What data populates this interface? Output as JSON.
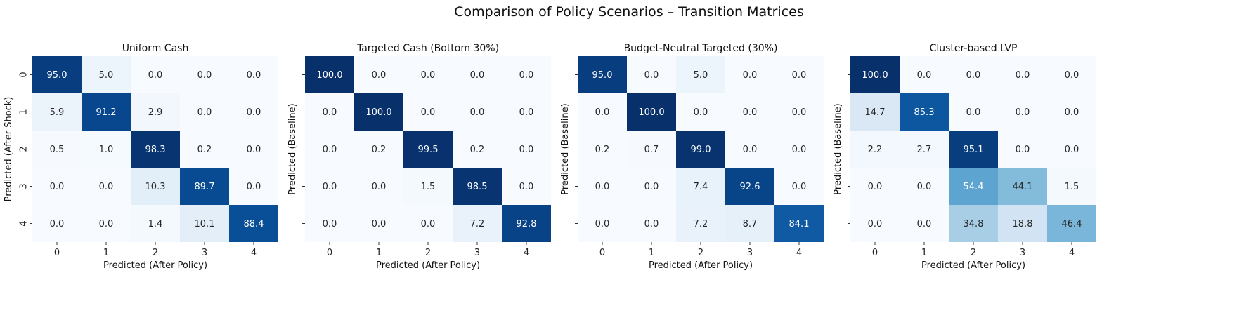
{
  "figure": {
    "title": "Comparison of Policy Scenarios – Transition Matrices"
  },
  "chart_data": [
    {
      "type": "heatmap",
      "title": "Uniform Cash",
      "xlabel": "Predicted (After Policy)",
      "ylabel": "Predicted (After Shock)",
      "x_ticks": [
        "0",
        "1",
        "2",
        "3",
        "4"
      ],
      "y_ticks": [
        "0",
        "1",
        "2",
        "3",
        "4"
      ],
      "y_tick_labels_shown": true,
      "colormap": "Blues",
      "vmin": 0,
      "vmax": 100,
      "values": [
        [
          95.0,
          5.0,
          0.0,
          0.0,
          0.0
        ],
        [
          5.9,
          91.2,
          2.9,
          0.0,
          0.0
        ],
        [
          0.5,
          1.0,
          98.3,
          0.2,
          0.0
        ],
        [
          0.0,
          0.0,
          10.3,
          89.7,
          0.0
        ],
        [
          0.0,
          0.0,
          1.4,
          10.1,
          88.4
        ]
      ]
    },
    {
      "type": "heatmap",
      "title": "Targeted Cash (Bottom 30%)",
      "xlabel": "Predicted (After Policy)",
      "ylabel": "Predicted (Baseline)",
      "x_ticks": [
        "0",
        "1",
        "2",
        "3",
        "4"
      ],
      "y_ticks": [
        "0",
        "1",
        "2",
        "3",
        "4"
      ],
      "y_tick_labels_shown": false,
      "colormap": "Blues",
      "vmin": 0,
      "vmax": 100,
      "values": [
        [
          100.0,
          0.0,
          0.0,
          0.0,
          0.0
        ],
        [
          0.0,
          100.0,
          0.0,
          0.0,
          0.0
        ],
        [
          0.0,
          0.2,
          99.5,
          0.2,
          0.0
        ],
        [
          0.0,
          0.0,
          1.5,
          98.5,
          0.0
        ],
        [
          0.0,
          0.0,
          0.0,
          7.2,
          92.8
        ]
      ]
    },
    {
      "type": "heatmap",
      "title": "Budget-Neutral Targeted (30%)",
      "xlabel": "Predicted (After Policy)",
      "ylabel": "Predicted (Baseline)",
      "x_ticks": [
        "0",
        "1",
        "2",
        "3",
        "4"
      ],
      "y_ticks": [
        "0",
        "1",
        "2",
        "3",
        "4"
      ],
      "y_tick_labels_shown": false,
      "colormap": "Blues",
      "vmin": 0,
      "vmax": 100,
      "values": [
        [
          95.0,
          0.0,
          5.0,
          0.0,
          0.0
        ],
        [
          0.0,
          100.0,
          0.0,
          0.0,
          0.0
        ],
        [
          0.2,
          0.7,
          99.0,
          0.0,
          0.0
        ],
        [
          0.0,
          0.0,
          7.4,
          92.6,
          0.0
        ],
        [
          0.0,
          0.0,
          7.2,
          8.7,
          84.1
        ]
      ]
    },
    {
      "type": "heatmap",
      "title": "Cluster-based LVP",
      "xlabel": "Predicted (After Policy)",
      "ylabel": "Predicted (Baseline)",
      "x_ticks": [
        "0",
        "1",
        "2",
        "3",
        "4"
      ],
      "y_ticks": [
        "0",
        "1",
        "2",
        "3",
        "4"
      ],
      "y_tick_labels_shown": false,
      "colormap": "Blues",
      "vmin": 0,
      "vmax": 100,
      "values": [
        [
          100.0,
          0.0,
          0.0,
          0.0,
          0.0
        ],
        [
          14.7,
          85.3,
          0.0,
          0.0,
          0.0
        ],
        [
          2.2,
          2.7,
          95.1,
          0.0,
          0.0
        ],
        [
          0.0,
          0.0,
          54.4,
          44.1,
          1.5
        ],
        [
          0.0,
          0.0,
          34.8,
          18.8,
          46.4
        ]
      ]
    }
  ]
}
